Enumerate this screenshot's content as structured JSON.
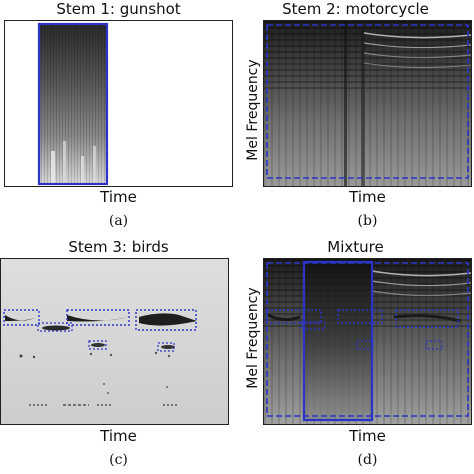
{
  "panels": [
    {
      "id": "a",
      "title": "Stem 1: gunshot",
      "xlabel": "Time",
      "caption": "(a)",
      "ylabel": ""
    },
    {
      "id": "b",
      "title": "Stem 2: motorcycle",
      "xlabel": "Time",
      "caption": "(b)",
      "ylabel": "Mel Frequency"
    },
    {
      "id": "c",
      "title": "Stem 3: birds",
      "xlabel": "Time",
      "caption": "(c)",
      "ylabel": ""
    },
    {
      "id": "d",
      "title": "Mixture",
      "xlabel": "Time",
      "caption": "(d)",
      "ylabel": "Mel Frequency"
    }
  ],
  "colors": {
    "annotation": "#2a35c8",
    "frame": "#222222",
    "spectrogram_dark": "#1e1e1e",
    "spectrogram_light": "#f2f2f2",
    "birds_background": "#d8d8d8"
  }
}
